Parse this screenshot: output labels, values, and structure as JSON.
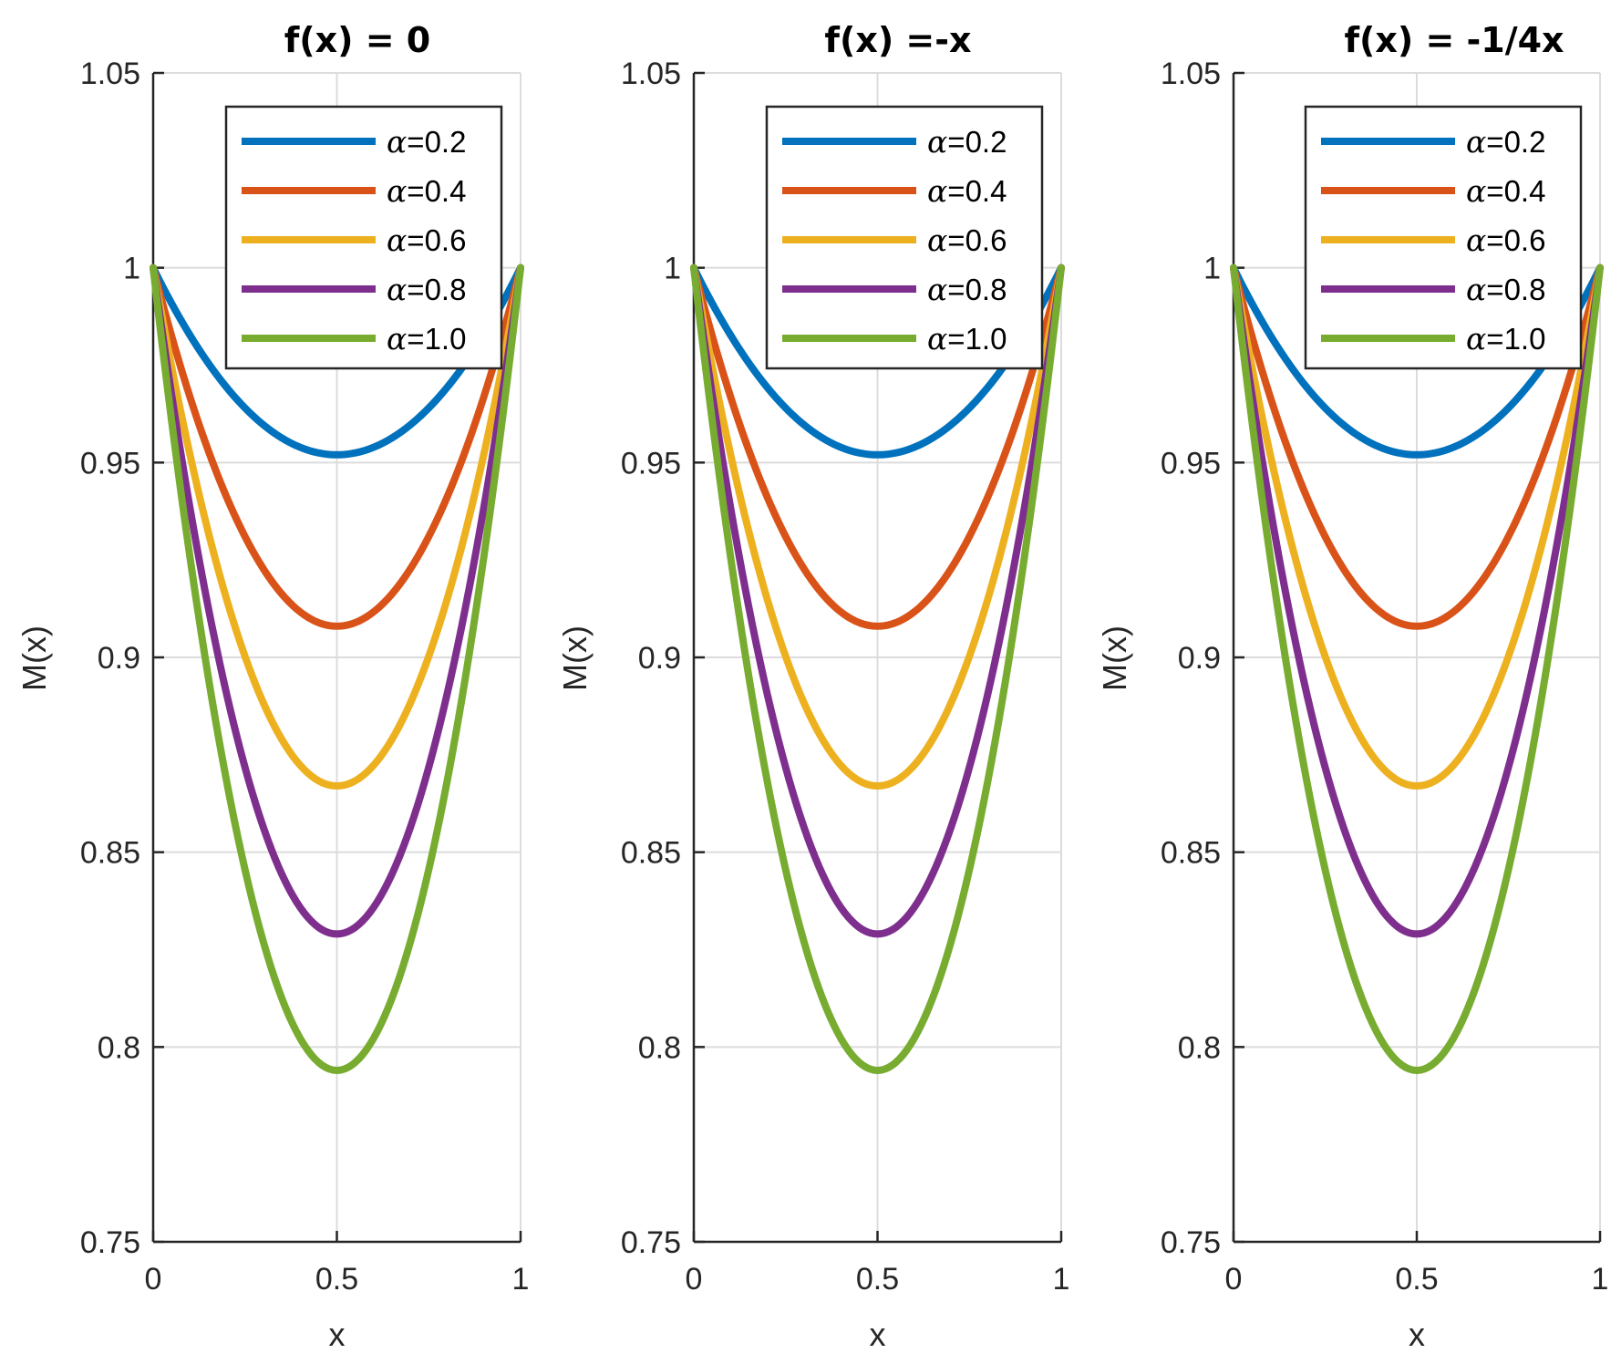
{
  "figure": {
    "description_free": true
  },
  "colors": {
    "series": [
      "#0072BD",
      "#D95319",
      "#EDB120",
      "#7E2F8E",
      "#77AC30"
    ],
    "grid": "#dcdcdc",
    "axis": "#262626"
  },
  "chart_data": [
    {
      "type": "line",
      "title": "f(x) = 0",
      "xlabel": "x",
      "ylabel": "M(x)",
      "xlim": [
        0,
        1
      ],
      "ylim": [
        0.75,
        1.05
      ],
      "xticks": [
        "0",
        "0.5",
        "1"
      ],
      "yticks": [
        "0.75",
        "0.8",
        "0.85",
        "0.9",
        "0.95",
        "1",
        "1.05"
      ],
      "grid": true,
      "legend_position": "top-right",
      "x": [
        0,
        0.1,
        0.2,
        0.3,
        0.4,
        0.5,
        0.6,
        0.7,
        0.8,
        0.9,
        1.0
      ],
      "series": [
        {
          "name": "α=0.2",
          "alpha_symbol": "α",
          "alpha_value": "=0.2",
          "min": 0.952
        },
        {
          "name": "α=0.4",
          "alpha_symbol": "α",
          "alpha_value": "=0.4",
          "min": 0.908
        },
        {
          "name": "α=0.6",
          "alpha_symbol": "α",
          "alpha_value": "=0.6",
          "min": 0.867
        },
        {
          "name": "α=0.8",
          "alpha_symbol": "α",
          "alpha_value": "=0.8",
          "min": 0.829
        },
        {
          "name": "α=1.0",
          "alpha_symbol": "α",
          "alpha_value": "=1.0",
          "min": 0.794
        }
      ]
    },
    {
      "type": "line",
      "title": "f(x) =-x",
      "xlabel": "x",
      "ylabel": "M(x)",
      "xlim": [
        0,
        1
      ],
      "ylim": [
        0.75,
        1.05
      ],
      "xticks": [
        "0",
        "0.5",
        "1"
      ],
      "yticks": [
        "0.75",
        "0.8",
        "0.85",
        "0.9",
        "0.95",
        "1",
        "1.05"
      ],
      "grid": true,
      "legend_position": "top-right",
      "x": [
        0,
        0.1,
        0.2,
        0.3,
        0.4,
        0.5,
        0.6,
        0.7,
        0.8,
        0.9,
        1.0
      ],
      "series": [
        {
          "name": "α=0.2",
          "alpha_symbol": "α",
          "alpha_value": "=0.2",
          "min": 0.952
        },
        {
          "name": "α=0.4",
          "alpha_symbol": "α",
          "alpha_value": "=0.4",
          "min": 0.908
        },
        {
          "name": "α=0.6",
          "alpha_symbol": "α",
          "alpha_value": "=0.6",
          "min": 0.867
        },
        {
          "name": "α=0.8",
          "alpha_symbol": "α",
          "alpha_value": "=0.8",
          "min": 0.829
        },
        {
          "name": "α=1.0",
          "alpha_symbol": "α",
          "alpha_value": "=1.0",
          "min": 0.794
        }
      ]
    },
    {
      "type": "line",
      "title": "f(x) = -1/4x",
      "xlabel": "x",
      "ylabel": "M(x)",
      "xlim": [
        0,
        1
      ],
      "ylim": [
        0.75,
        1.05
      ],
      "xticks": [
        "0",
        "0.5",
        "1"
      ],
      "yticks": [
        "0.75",
        "0.8",
        "0.85",
        "0.9",
        "0.95",
        "1",
        "1.05"
      ],
      "grid": true,
      "legend_position": "top-right",
      "x": [
        0,
        0.1,
        0.2,
        0.3,
        0.4,
        0.5,
        0.6,
        0.7,
        0.8,
        0.9,
        1.0
      ],
      "series": [
        {
          "name": "α=0.2",
          "alpha_symbol": "α",
          "alpha_value": "=0.2",
          "min": 0.952
        },
        {
          "name": "α=0.4",
          "alpha_symbol": "α",
          "alpha_value": "=0.4",
          "min": 0.908
        },
        {
          "name": "α=0.6",
          "alpha_symbol": "α",
          "alpha_value": "=0.6",
          "min": 0.867
        },
        {
          "name": "α=0.8",
          "alpha_symbol": "α",
          "alpha_value": "=0.8",
          "min": 0.829
        },
        {
          "name": "α=1.0",
          "alpha_symbol": "α",
          "alpha_value": "=1.0",
          "min": 0.794
        }
      ]
    }
  ]
}
